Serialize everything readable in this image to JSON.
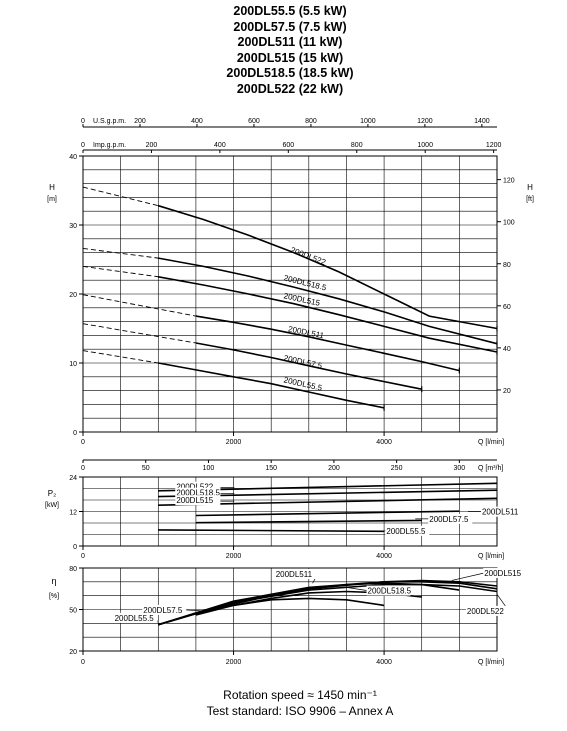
{
  "header": {
    "titles": [
      "200DL55.5 (5.5 kW)",
      "200DL57.5 (7.5 kW)",
      "200DL511 (11 kW)",
      "200DL515 (15 kW)",
      "200DL518.5 (18.5 kW)",
      "200DL522 (22 kW)"
    ]
  },
  "footer": {
    "rotation": "Rotation speed ≈ 1450 min⁻¹",
    "standard": "Test standard: ISO 9906 – Annex A"
  },
  "chart_data": [
    {
      "type": "line",
      "name": "head",
      "ylabel": "H",
      "yunit": "[m]",
      "y2label": "H",
      "y2unit": "[ft]",
      "xlabel": "Q [l/min]",
      "xlim": [
        0,
        5500
      ],
      "ylim": [
        0,
        40
      ],
      "x_ticks": [
        0,
        2000,
        4000
      ],
      "y_ticks": [
        0,
        10,
        20,
        30,
        40
      ],
      "y2_ticks": [
        20,
        40,
        60,
        80,
        100,
        120
      ],
      "usgpm_label": "U.S.g.p.m.",
      "usgpm_ticks": [
        "0",
        "200",
        "400",
        "600",
        "800",
        "1000",
        "1200",
        "1400"
      ],
      "impgpm_label": "Imp.g.p.m.",
      "impgpm_ticks": [
        "0",
        "200",
        "400",
        "600",
        "800",
        "1000",
        "1200"
      ],
      "grid": true,
      "series": [
        {
          "name": "200DL522",
          "dashed": [
            [
              0,
              35.5
            ],
            [
              1000,
              32.8
            ]
          ],
          "x": [
            1000,
            1600,
            2200,
            2800,
            3400,
            4000,
            4600,
            5500
          ],
          "y": [
            32.8,
            30.8,
            28.5,
            26.0,
            23.2,
            20.0,
            16.8,
            15.0
          ],
          "label_at": [
            2750,
            26.1
          ]
        },
        {
          "name": "200DL518.5",
          "dashed": [
            [
              0,
              26.6
            ],
            [
              1000,
              25.2
            ]
          ],
          "x": [
            1000,
            1600,
            2200,
            2800,
            3400,
            4000,
            4600,
            5500
          ],
          "y": [
            25.2,
            24.0,
            22.6,
            21.0,
            19.3,
            17.4,
            15.3,
            12.8
          ],
          "label_at": [
            2660,
            22.0
          ]
        },
        {
          "name": "200DL515",
          "dashed": [
            [
              0,
              24.0
            ],
            [
              1000,
              22.5
            ]
          ],
          "x": [
            1000,
            1600,
            2200,
            2800,
            3400,
            4000,
            4600,
            5500
          ],
          "y": [
            22.5,
            21.3,
            20.0,
            18.6,
            17.0,
            15.3,
            13.6,
            11.6
          ],
          "label_at": [
            2660,
            19.4
          ]
        },
        {
          "name": "200DL511",
          "dashed": [
            [
              0,
              19.9
            ],
            [
              1500,
              16.8
            ]
          ],
          "x": [
            1500,
            2000,
            2500,
            3000,
            3500,
            4000,
            4500,
            5000
          ],
          "y": [
            16.8,
            15.9,
            14.9,
            13.8,
            12.6,
            11.4,
            10.2,
            8.9
          ],
          "label_at": [
            2720,
            14.6
          ]
        },
        {
          "name": "200DL57.5",
          "dashed": [
            [
              0,
              15.7
            ],
            [
              1500,
              12.9
            ]
          ],
          "x": [
            1500,
            2000,
            2500,
            3000,
            3500,
            4000,
            4500
          ],
          "y": [
            12.9,
            11.9,
            10.8,
            9.6,
            8.4,
            7.3,
            6.2
          ],
          "label_at": [
            2660,
            10.4
          ]
        },
        {
          "name": "200DL55.5",
          "dashed": [
            [
              0,
              11.8
            ],
            [
              1000,
              10.0
            ]
          ],
          "x": [
            1000,
            1500,
            2000,
            2500,
            3000,
            3500,
            4000
          ],
          "y": [
            10.0,
            9.0,
            8.0,
            7.0,
            5.8,
            4.6,
            3.5
          ],
          "label_at": [
            2660,
            7.2
          ]
        }
      ]
    },
    {
      "type": "line",
      "name": "power",
      "ylabel": "P₂",
      "yunit": "[kW]",
      "xlabel": "Q [l/min]",
      "xlim": [
        0,
        5500
      ],
      "ylim": [
        0,
        24
      ],
      "x_ticks": [
        0,
        2000,
        4000
      ],
      "y_ticks": [
        0,
        12,
        24
      ],
      "m3h_label": "Q [m³/h]",
      "m3h_ticks": [
        "0",
        "50",
        "100",
        "150",
        "200",
        "250",
        "300"
      ],
      "grid": true,
      "series": [
        {
          "name": "200DL522",
          "x": [
            1000,
            5500
          ],
          "y": [
            19.2,
            21.8
          ]
        },
        {
          "name": "200DL518.5",
          "x": [
            1000,
            5500
          ],
          "y": [
            17.2,
            19.4
          ]
        },
        {
          "name": "200DL515",
          "x": [
            1000,
            5500
          ],
          "y": [
            14.2,
            16.6
          ]
        },
        {
          "name": "200DL511",
          "x": [
            1500,
            5000
          ],
          "y": [
            10.6,
            12.1
          ]
        },
        {
          "name": "200DL57.5",
          "x": [
            1500,
            4500
          ],
          "y": [
            8.1,
            8.9
          ]
        },
        {
          "name": "200DL55.5",
          "x": [
            1000,
            4000
          ],
          "y": [
            5.6,
            5.1
          ]
        }
      ],
      "labels": [
        {
          "name": "200DL522",
          "at": [
            1240,
            19.6
          ],
          "side": "left"
        },
        {
          "name": "200DL518.5",
          "at": [
            1240,
            17.5
          ],
          "side": "left"
        },
        {
          "name": "200DL515",
          "at": [
            1240,
            14.9
          ],
          "side": "left"
        },
        {
          "name": "200DL511",
          "at": [
            5300,
            10.9
          ],
          "side": "right"
        },
        {
          "name": "200DL57.5",
          "at": [
            4600,
            8.4
          ],
          "side": "right"
        },
        {
          "name": "200DL55.5",
          "at": [
            4030,
            4.2
          ],
          "side": "right"
        }
      ]
    },
    {
      "type": "line",
      "name": "efficiency",
      "ylabel": "η",
      "yunit": "[%]",
      "xlabel": "Q [l/min]",
      "xlim": [
        0,
        5500
      ],
      "ylim": [
        20,
        80
      ],
      "x_ticks": [
        0,
        2000,
        4000
      ],
      "y_ticks": [
        20,
        50,
        80
      ],
      "grid": true,
      "series": [
        {
          "name": "200DL55.5",
          "x": [
            1000,
            1500,
            2000,
            2500,
            3000,
            3500,
            4000
          ],
          "y": [
            39,
            47,
            53,
            57,
            58,
            57,
            53
          ]
        },
        {
          "name": "200DL57.5",
          "x": [
            1500,
            2000,
            2500,
            3000,
            3500,
            4000,
            4500
          ],
          "y": [
            46,
            53,
            58,
            62,
            63,
            62,
            59
          ]
        },
        {
          "name": "200DL511",
          "x": [
            1500,
            2000,
            2500,
            3000,
            3500,
            4000,
            4500,
            5000
          ],
          "y": [
            47,
            54,
            60,
            65,
            68,
            69,
            68,
            64
          ]
        },
        {
          "name": "200DL515",
          "x": [
            1000,
            2000,
            3000,
            4000,
            4500,
            5000,
            5500
          ],
          "y": [
            39,
            55,
            65,
            70,
            71,
            70,
            67
          ]
        },
        {
          "name": "200DL518.5",
          "x": [
            1000,
            2000,
            3000,
            4000,
            4500,
            5000,
            5500
          ],
          "y": [
            39,
            56,
            66,
            70,
            70,
            69,
            65
          ]
        },
        {
          "name": "200DL522",
          "x": [
            1000,
            2000,
            3000,
            4000,
            4500,
            5000,
            5500
          ],
          "y": [
            39,
            55,
            64,
            68,
            68,
            67,
            63
          ]
        }
      ],
      "labels": [
        {
          "name": "200DL511",
          "text_at": [
            2560,
            73.5
          ],
          "point": [
            3050,
            69
          ]
        },
        {
          "name": "200DL515",
          "text_at": [
            5330,
            74.2
          ],
          "point": [
            4900,
            71
          ]
        },
        {
          "name": "200DL518.5",
          "text_at": [
            3780,
            61.5
          ],
          "point": [
            3500,
            66
          ]
        },
        {
          "name": "200DL522",
          "text_at": [
            5100,
            46.8
          ],
          "point": [
            5500,
            61
          ]
        },
        {
          "name": "200DL57.5",
          "text_at": [
            800,
            47.5
          ],
          "point": [
            1580,
            49
          ]
        },
        {
          "name": "200DL55.5",
          "text_at": [
            420,
            41.8
          ],
          "point": [
            1000,
            40
          ]
        }
      ]
    }
  ]
}
